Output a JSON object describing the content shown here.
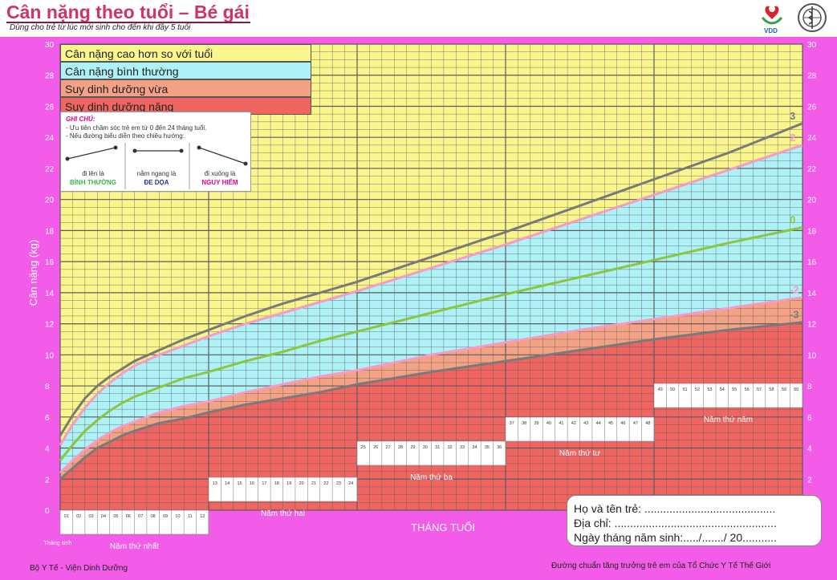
{
  "header": {
    "title": "Cân nặng theo tuổi – Bé gái",
    "subtitle": "Dùng cho trẻ từ lúc mới sinh cho đến khi đầy 5 tuổi",
    "logo_text": "VDD"
  },
  "legend": [
    {
      "label": "Cân nặng cao hơn so với tuổi",
      "color": "#faf58c"
    },
    {
      "label": "Cân nặng bình thường",
      "color": "#aef1f6"
    },
    {
      "label": "Suy dinh dưỡng vừa",
      "color": "#f3a285"
    },
    {
      "label": "Suy dinh dưỡng nặng",
      "color": "#ef6562"
    }
  ],
  "note": {
    "title": "GHI CHÚ:",
    "line1": "- Ưu tiên chăm sóc trẻ em từ 0 đến 24 tháng tuổi.",
    "line2": "- Nếu đường biểu diễn theo chiều hướng:",
    "cases": [
      {
        "text": "đi lên là",
        "status": "BÌNH THƯỜNG",
        "color": "#39b54a"
      },
      {
        "text": "nằm ngang là",
        "status": "ĐE DỌA",
        "color": "#2e3192"
      },
      {
        "text": "đi xuống là",
        "status": "NGUY HIỂM",
        "color": "#ec008c"
      }
    ]
  },
  "info_box": {
    "name_label": "Họ và tên trẻ: ..........................................",
    "address_label": "Địa chỉ: ....................................................",
    "dob_label": "Ngày tháng năm sinh:...../......./ 20..........."
  },
  "footer": {
    "left": "Bộ Y Tế - Viện Dinh Dưỡng",
    "right": "Đường chuẩn tăng trưởng trẻ em của Tổ Chức Y Tế Thế Giới"
  },
  "colors": {
    "background": "#f25ce8",
    "grid": "#5c5c5c",
    "sd3": "#7a7a7a",
    "sd2": "#f79ac4",
    "sd0": "#8cc63f",
    "sdm2": "#f79ac4",
    "sdm3": "#7a7a7a",
    "title": "#d0336a"
  },
  "chart_data": {
    "type": "line",
    "title": "Cân nặng theo tuổi – Bé gái",
    "xlabel": "THÁNG TUỔI",
    "ylabel": "Cân nặng (kg)",
    "xlim": [
      0,
      60
    ],
    "ylim": [
      0,
      30
    ],
    "y_ticks": [
      0,
      2,
      4,
      6,
      8,
      10,
      12,
      14,
      16,
      18,
      20,
      22,
      24,
      26,
      28,
      30
    ],
    "x": [
      0,
      1,
      2,
      3,
      4,
      5,
      6,
      8,
      10,
      12,
      15,
      18,
      21,
      24,
      30,
      36,
      42,
      48,
      54,
      60
    ],
    "series": [
      {
        "name": "3",
        "values": [
          4.8,
          6.1,
          7.2,
          8.0,
          8.6,
          9.1,
          9.6,
          10.3,
          11.0,
          11.6,
          12.5,
          13.3,
          14.0,
          14.7,
          16.3,
          17.9,
          19.6,
          21.3,
          23.0,
          24.9
        ]
      },
      {
        "name": "2",
        "values": [
          4.2,
          5.5,
          6.6,
          7.5,
          8.2,
          8.8,
          9.3,
          10.0,
          10.6,
          11.2,
          12.0,
          12.7,
          13.4,
          14.1,
          15.6,
          17.1,
          18.7,
          20.3,
          21.9,
          23.5
        ]
      },
      {
        "name": "0",
        "values": [
          3.2,
          4.2,
          5.1,
          5.8,
          6.4,
          6.9,
          7.3,
          7.9,
          8.5,
          8.9,
          9.6,
          10.2,
          10.9,
          11.5,
          12.7,
          13.9,
          15.0,
          16.1,
          17.2,
          18.2
        ]
      },
      {
        "name": "-2",
        "values": [
          2.4,
          3.2,
          3.9,
          4.5,
          5.0,
          5.4,
          5.7,
          6.3,
          6.7,
          7.0,
          7.6,
          8.1,
          8.6,
          9.0,
          10.0,
          10.8,
          11.6,
          12.3,
          13.0,
          13.7
        ]
      },
      {
        "name": "-3",
        "values": [
          2.0,
          2.7,
          3.4,
          4.0,
          4.4,
          4.8,
          5.1,
          5.6,
          5.9,
          6.3,
          6.8,
          7.2,
          7.6,
          8.1,
          8.9,
          9.6,
          10.3,
          11.0,
          11.6,
          12.1
        ]
      }
    ],
    "bands": [
      {
        "label": "Cân nặng cao hơn so với tuổi",
        "between": [
          "2",
          "top"
        ]
      },
      {
        "label": "Cân nặng bình thường",
        "between": [
          "-2",
          "2"
        ]
      },
      {
        "label": "Suy dinh dưỡng vừa",
        "between": [
          "-3",
          "-2"
        ]
      },
      {
        "label": "Suy dinh dưỡng nặng",
        "between": [
          "bottom",
          "-3"
        ]
      }
    ],
    "month_tick_labels": [
      "01",
      "02",
      "03",
      "04",
      "05",
      "06",
      "07",
      "08",
      "09",
      "10",
      "11",
      "12",
      "13",
      "14",
      "15",
      "16",
      "17",
      "18",
      "19",
      "20",
      "21",
      "22",
      "23",
      "24",
      "25",
      "26",
      "27",
      "28",
      "29",
      "30",
      "31",
      "32",
      "33",
      "34",
      "35",
      "36",
      "37",
      "38",
      "39",
      "40",
      "41",
      "42",
      "43",
      "44",
      "45",
      "46",
      "47",
      "48",
      "49",
      "50",
      "51",
      "52",
      "53",
      "54",
      "55",
      "56",
      "57",
      "58",
      "59",
      "60"
    ],
    "birth_label": "Tháng sinh",
    "year_labels": [
      "Năm thứ nhất",
      "Năm thứ hai",
      "Năm thứ ba",
      "Năm thứ tư",
      "Năm thứ năm"
    ],
    "grid": true,
    "legend_position": "top-left"
  }
}
